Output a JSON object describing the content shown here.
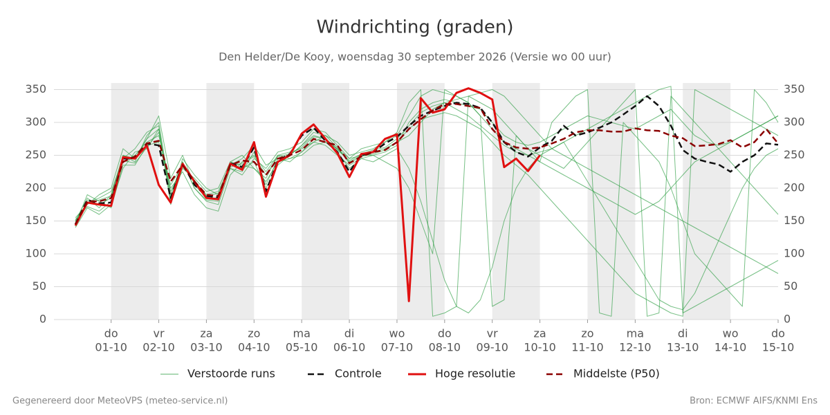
{
  "chart_data": {
    "type": "line",
    "title": "Windrichting (graden)",
    "subtitle": "Den Helder/De Kooy, woensdag 30 september 2026 (Versie wo 00 uur)",
    "footer_left": "Gegenereerd door MeteoVPS (meteo-service.nl)",
    "footer_right": "Bron: ECMWF AIFS/KNMI Ens",
    "x": [
      0.25,
      0.5,
      0.75,
      1,
      1.25,
      1.5,
      1.75,
      2,
      2.25,
      2.5,
      2.75,
      3,
      3.25,
      3.5,
      3.75,
      4,
      4.25,
      4.5,
      4.75,
      5,
      5.25,
      5.5,
      5.75,
      6,
      6.25,
      6.5,
      6.75,
      7,
      7.25,
      7.5,
      7.75,
      8,
      8.25,
      8.5,
      8.75,
      9,
      9.25,
      9.5,
      9.75,
      10,
      10.25,
      10.5,
      10.75,
      11,
      11.25,
      11.5,
      11.75,
      12,
      12.25,
      12.5,
      12.75,
      13,
      13.25,
      13.5,
      13.75,
      14,
      14.25,
      14.5,
      14.75,
      15
    ],
    "xlim": [
      -0.2,
      15
    ],
    "xticks": [
      {
        "value": 1,
        "label": [
          "do",
          "01-10"
        ]
      },
      {
        "value": 2,
        "label": [
          "vr",
          "02-10"
        ]
      },
      {
        "value": 3,
        "label": [
          "za",
          "03-10"
        ]
      },
      {
        "value": 4,
        "label": [
          "zo",
          "04-10"
        ]
      },
      {
        "value": 5,
        "label": [
          "ma",
          "05-10"
        ]
      },
      {
        "value": 6,
        "label": [
          "di",
          "06-10"
        ]
      },
      {
        "value": 7,
        "label": [
          "wo",
          "07-10"
        ]
      },
      {
        "value": 8,
        "label": [
          "do",
          "08-10"
        ]
      },
      {
        "value": 9,
        "label": [
          "vr",
          "09-10"
        ]
      },
      {
        "value": 10,
        "label": [
          "za",
          "10-10"
        ]
      },
      {
        "value": 11,
        "label": [
          "zo",
          "11-10"
        ]
      },
      {
        "value": 12,
        "label": [
          "ma",
          "12-10"
        ]
      },
      {
        "value": 13,
        "label": [
          "di",
          "13-10"
        ]
      },
      {
        "value": 14,
        "label": [
          "wo",
          "14-10"
        ]
      },
      {
        "value": 15,
        "label": [
          "do",
          "15-10"
        ]
      }
    ],
    "ylim": [
      0,
      360
    ],
    "yticks": [
      0,
      50,
      100,
      150,
      200,
      250,
      300,
      350
    ],
    "grid": true,
    "legend": "bottom",
    "series": [
      {
        "name": "Verstoorde runs",
        "color": "#2e9e44",
        "members": [
          [
            150,
            185,
            170,
            190,
            250,
            240,
            280,
            300,
            190,
            240,
            200,
            180,
            175,
            230,
            225,
            255,
            205,
            245,
            250,
            265,
            280,
            275,
            260,
            240,
            250,
            250,
            255,
            265,
            300,
            320,
            330,
            335,
            330,
            325,
            320,
            300,
            280,
            270,
            265,
            270,
            280,
            290,
            300,
            310,
            305,
            300,
            295,
            290,
            300,
            310,
            320,
            300,
            280,
            270,
            265,
            270,
            280,
            290,
            300,
            310
          ],
          [
            140,
            170,
            160,
            175,
            230,
            255,
            260,
            290,
            175,
            230,
            215,
            195,
            200,
            240,
            235,
            230,
            210,
            240,
            245,
            255,
            270,
            265,
            250,
            235,
            245,
            240,
            250,
            260,
            230,
            180,
            120,
            60,
            20,
            10,
            30,
            80,
            150,
            200,
            230,
            250,
            260,
            270,
            240,
            210,
            180,
            150,
            120,
            90,
            60,
            30,
            20,
            15,
            40,
            80,
            120,
            160,
            200,
            230,
            250,
            260
          ],
          [
            155,
            175,
            190,
            200,
            260,
            245,
            275,
            310,
            215,
            250,
            205,
            185,
            185,
            240,
            250,
            230,
            215,
            250,
            255,
            260,
            270,
            280,
            270,
            250,
            255,
            260,
            270,
            280,
            310,
            340,
            350,
            345,
            340,
            330,
            310,
            290,
            270,
            260,
            250,
            240,
            230,
            220,
            210,
            200,
            190,
            180,
            170,
            160,
            170,
            180,
            200,
            220,
            240,
            250,
            260,
            270,
            280,
            290,
            300,
            310
          ],
          [
            145,
            190,
            180,
            170,
            235,
            235,
            265,
            270,
            200,
            225,
            190,
            170,
            165,
            220,
            240,
            250,
            225,
            250,
            245,
            250,
            265,
            270,
            255,
            230,
            245,
            250,
            240,
            230,
            200,
            150,
            100,
            350,
            340,
            330,
            310,
            20,
            30,
            280,
            260,
            240,
            300,
            320,
            340,
            350,
            10,
            5,
            300,
            280,
            260,
            240,
            200,
            150,
            100,
            80,
            60,
            40,
            20,
            350,
            330,
            300
          ],
          [
            148,
            178,
            185,
            195,
            245,
            260,
            285,
            295,
            180,
            245,
            220,
            200,
            190,
            230,
            220,
            245,
            230,
            255,
            260,
            270,
            290,
            285,
            265,
            245,
            260,
            265,
            270,
            285,
            330,
            350,
            5,
            10,
            20,
            340,
            330,
            320,
            300,
            280,
            260,
            250,
            240,
            230,
            250,
            270,
            290,
            310,
            330,
            350,
            5,
            10,
            340,
            320,
            300,
            280,
            260,
            240,
            220,
            200,
            180,
            160
          ],
          [
            150,
            172,
            165,
            180,
            240,
            250,
            270,
            280,
            205,
            235,
            210,
            190,
            195,
            235,
            245,
            265,
            235,
            245,
            240,
            255,
            275,
            270,
            260,
            245,
            250,
            255,
            260,
            270,
            280,
            300,
            320,
            330,
            335,
            340,
            345,
            350,
            340,
            320,
            300,
            280,
            260,
            250,
            240,
            230,
            220,
            210,
            200,
            190,
            180,
            170,
            160,
            150,
            140,
            130,
            120,
            110,
            100,
            90,
            80,
            70
          ],
          [
            142,
            182,
            175,
            185,
            250,
            245,
            275,
            290,
            185,
            240,
            200,
            182,
            180,
            238,
            230,
            240,
            200,
            235,
            250,
            265,
            285,
            280,
            262,
            238,
            248,
            252,
            258,
            270,
            290,
            305,
            310,
            315,
            310,
            300,
            290,
            270,
            250,
            235,
            220,
            200,
            180,
            160,
            140,
            120,
            100,
            80,
            60,
            40,
            30,
            20,
            10,
            5,
            350,
            340,
            330,
            320,
            310,
            300,
            290,
            280
          ],
          [
            152,
            176,
            182,
            188,
            242,
            238,
            262,
            285,
            195,
            232,
            212,
            188,
            192,
            232,
            238,
            248,
            220,
            248,
            252,
            262,
            278,
            276,
            258,
            242,
            252,
            258,
            262,
            275,
            295,
            315,
            325,
            330,
            320,
            310,
            295,
            280,
            265,
            255,
            250,
            255,
            260,
            270,
            280,
            290,
            300,
            310,
            320,
            330,
            340,
            350,
            355,
            10,
            20,
            30,
            40,
            50,
            60,
            70,
            80,
            90
          ]
        ]
      },
      {
        "name": "Controle",
        "color": "#111111",
        "dashed": true,
        "values": [
          145,
          182,
          177,
          178,
          245,
          245,
          268,
          265,
          185,
          237,
          205,
          188,
          186,
          238,
          232,
          262,
          195,
          242,
          252,
          280,
          292,
          272,
          255,
          225,
          250,
          255,
          268,
          278,
          295,
          310,
          318,
          325,
          330,
          328,
          322,
          300,
          270,
          255,
          248,
          262,
          272,
          295,
          280,
          285,
          292,
          300,
          312,
          325,
          340,
          325,
          295,
          258,
          245,
          240,
          236,
          225,
          240,
          250,
          268,
          266
        ]
      },
      {
        "name": "Hoge resolutie",
        "color": "#e01010",
        "values": [
          143,
          178,
          175,
          173,
          247,
          245,
          265,
          205,
          178,
          237,
          210,
          185,
          183,
          237,
          228,
          270,
          187,
          240,
          250,
          283,
          297,
          275,
          253,
          217,
          252,
          255,
          275,
          282,
          28,
          337,
          315,
          320,
          345,
          352,
          345,
          335,
          232,
          245,
          226,
          250,
          null,
          null,
          null,
          null,
          null,
          null,
          null,
          null,
          null,
          null,
          null,
          null,
          null,
          null,
          null,
          null,
          null,
          null,
          null,
          null
        ]
      },
      {
        "name": "Middelste (P50)",
        "color": "#8b0000",
        "dashed": true,
        "values": [
          145,
          180,
          180,
          185,
          240,
          248,
          268,
          272,
          210,
          235,
          210,
          190,
          188,
          235,
          242,
          240,
          220,
          245,
          250,
          258,
          275,
          270,
          265,
          238,
          248,
          255,
          258,
          270,
          290,
          305,
          318,
          328,
          328,
          325,
          322,
          290,
          270,
          262,
          260,
          262,
          268,
          275,
          285,
          288,
          288,
          286,
          286,
          291,
          288,
          287,
          280,
          276,
          264,
          265,
          267,
          273,
          262,
          270,
          290,
          268
        ]
      }
    ]
  }
}
